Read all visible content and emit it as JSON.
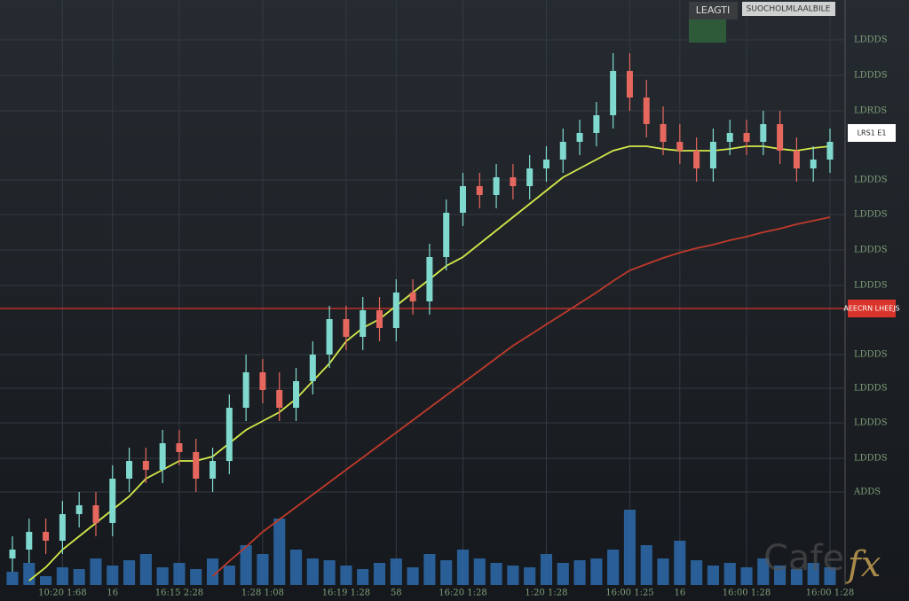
{
  "chart_data": {
    "type": "candlestick",
    "legend": [
      "LEAGTI",
      "SUOCHOLMLAALBILE"
    ],
    "watermark": [
      "Cafe",
      "fx"
    ],
    "categories": [
      null,
      null,
      null,
      "10:20 1:68",
      null,
      null,
      "16",
      null,
      null,
      null,
      "16:15 2:28",
      null,
      null,
      null,
      null,
      "1:28 1:08",
      null,
      null,
      null,
      null,
      "16:19 1:28",
      null,
      null,
      "58",
      null,
      null,
      null,
      "16:20 1:28",
      null,
      null,
      null,
      null,
      "1:20 1:28",
      null,
      null,
      null,
      null,
      "16:00 1:25",
      null,
      null,
      "16",
      null,
      null,
      null,
      "16:00 1:28",
      null,
      null,
      null,
      null,
      "16:00 1:28"
    ],
    "open": [
      3,
      4,
      6,
      5,
      8,
      9,
      7,
      12,
      14,
      13,
      16,
      15,
      12,
      14,
      20,
      24,
      22,
      20,
      23,
      26,
      30,
      28,
      31,
      29,
      33,
      32,
      37,
      42,
      45,
      44,
      46,
      45,
      47,
      48,
      50,
      51,
      53,
      58,
      55,
      52,
      50,
      49,
      47,
      50,
      51,
      50,
      52,
      49,
      47,
      48
    ],
    "high": [
      5.5,
      7.5,
      7.5,
      9.5,
      10.5,
      10.5,
      13.5,
      15.5,
      15.5,
      17.5,
      17.5,
      16.5,
      15.5,
      21.5,
      26,
      25.5,
      24,
      24.5,
      27.5,
      31.5,
      31.5,
      32.5,
      32.5,
      34.5,
      34.5,
      38.5,
      43.5,
      46.5,
      46.5,
      47.5,
      47.5,
      48.5,
      49.5,
      51.5,
      52.5,
      54.5,
      60,
      60,
      57,
      54,
      52,
      50.5,
      51.5,
      52.5,
      52.5,
      53.5,
      53.5,
      50.5,
      49.5,
      51.5
    ],
    "low": [
      1.5,
      2.5,
      3.5,
      3.5,
      6.5,
      5.5,
      5.5,
      10.5,
      11.5,
      11.5,
      13.5,
      10.5,
      10.5,
      12.5,
      18.5,
      20.5,
      18.5,
      18.5,
      21.5,
      24.5,
      26.5,
      26.5,
      27.5,
      27.5,
      30.5,
      30.5,
      35.5,
      40.5,
      42.5,
      42.5,
      43.5,
      43.5,
      45.5,
      46.5,
      48.5,
      49.5,
      51.5,
      53.5,
      50.5,
      48.5,
      47.5,
      45.5,
      45.5,
      48.5,
      48.5,
      48.5,
      47.5,
      45.5,
      45.5,
      46.5
    ],
    "close": [
      4,
      6,
      5,
      8,
      9,
      7,
      12,
      14,
      13,
      16,
      15,
      12,
      14,
      20,
      24,
      22,
      20,
      23,
      26,
      30,
      28,
      31,
      29,
      33,
      32,
      37,
      42,
      45,
      44,
      46,
      45,
      47,
      48,
      50,
      51,
      53,
      58,
      55,
      52,
      50,
      49,
      47,
      50,
      51,
      50,
      52,
      49,
      47,
      48,
      50
    ],
    "up_color": "#7fd9cf",
    "down_color": "#e5675e",
    "lines": [
      {
        "color": "#d4e94a",
        "values": [
          null,
          0.5,
          2,
          4,
          5.5,
          7,
          8.5,
          10,
          12,
          13,
          14,
          14,
          14.5,
          16,
          17.5,
          18.5,
          19.5,
          21,
          23,
          25,
          27.5,
          29,
          30,
          31.5,
          33,
          34.5,
          36,
          37,
          38.5,
          40,
          41.5,
          43,
          44.5,
          46,
          47,
          48,
          49,
          49.5,
          49.5,
          49.2,
          49,
          49,
          49,
          49.2,
          49.5,
          49.5,
          49.2,
          49,
          49.3,
          49.5
        ]
      },
      {
        "color": "#c0392b",
        "values": [
          null,
          null,
          null,
          null,
          null,
          null,
          null,
          null,
          null,
          null,
          null,
          null,
          1,
          2.7,
          4.3,
          6,
          7.4,
          8.8,
          10.2,
          11.6,
          13,
          14.4,
          15.8,
          17.2,
          18.6,
          20,
          21.4,
          22.8,
          24.2,
          25.6,
          27,
          28.2,
          29.4,
          30.6,
          31.8,
          33,
          34.3,
          35.5,
          36.2,
          36.9,
          37.5,
          38,
          38.4,
          38.9,
          39.3,
          39.8,
          40.2,
          40.7,
          41.1,
          41.5
        ]
      }
    ],
    "volume": [
      15,
      25,
      10,
      20,
      18,
      30,
      22,
      28,
      35,
      20,
      25,
      18,
      30,
      22,
      45,
      35,
      75,
      40,
      30,
      28,
      22,
      18,
      25,
      30,
      20,
      35,
      28,
      40,
      30,
      25,
      22,
      20,
      35,
      25,
      28,
      30,
      40,
      85,
      45,
      30,
      50,
      28,
      22,
      25,
      20,
      30,
      22,
      18,
      25,
      20
    ],
    "volume_color": "#2e6fb5",
    "vlim": [
      0,
      100
    ],
    "ylim": [
      0,
      66
    ],
    "yticks": [
      {
        "value": 61.5,
        "label": "LDDDS"
      },
      {
        "value": 57.5,
        "label": "LDDDS"
      },
      {
        "value": 53.5,
        "label": "LDRDS"
      },
      {
        "value": 45.7,
        "label": "LDDDS"
      },
      {
        "value": 41.8,
        "label": "LDDDS"
      },
      {
        "value": 37.8,
        "label": "LDDDS"
      },
      {
        "value": 33.8,
        "label": "LDDDS"
      },
      {
        "value": 26,
        "label": "LDDDS"
      },
      {
        "value": 22.2,
        "label": "LDDDS"
      },
      {
        "value": 18.3,
        "label": "LDDDS"
      },
      {
        "value": 14.3,
        "label": "LDDDS"
      },
      {
        "value": 10.5,
        "label": "ADDS"
      }
    ],
    "price_labels": [
      {
        "value": 51,
        "label": "LRS1 E1",
        "color": "#ffffff"
      },
      {
        "value": 31.2,
        "label": "AEECRN LHEEJS",
        "color": "#d9342b"
      }
    ],
    "grid": true
  }
}
